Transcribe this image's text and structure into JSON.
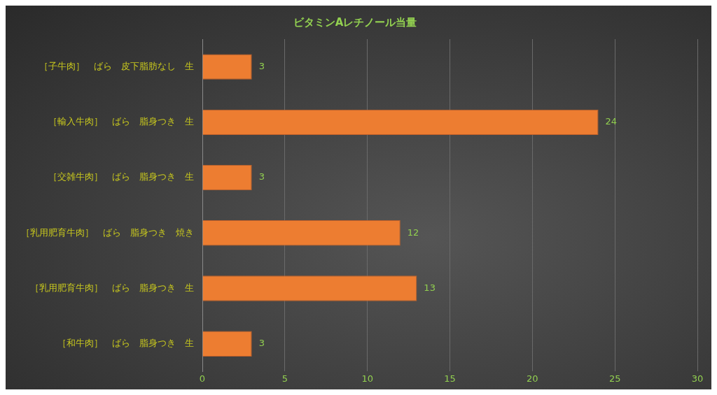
{
  "chart_data": {
    "type": "bar",
    "title": "ビタミンAレチノール当量",
    "orientation": "horizontal",
    "categories": [
      "［子牛肉］　ばら　皮下脂肪なし　生",
      "［輸入牛肉］　ばら　脂身つき　生",
      "［交雑牛肉］　ばら　脂身つき　生",
      "［乳用肥育牛肉］　ばら　脂身つき　焼き",
      "［乳用肥育牛肉］　ばら　脂身つき　生",
      "［和牛肉］　ばら　脂身つき　生"
    ],
    "values": [
      3,
      24,
      3,
      12,
      13,
      3
    ],
    "color": "#ed7d31",
    "xlim": [
      0,
      30
    ],
    "xticks": [
      0,
      5,
      10,
      15,
      20,
      25,
      30
    ],
    "grid": "x",
    "legend": false,
    "data_labels": true
  }
}
